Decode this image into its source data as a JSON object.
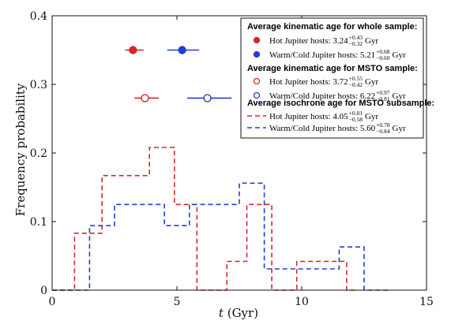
{
  "colors": {
    "hot": "#d62728",
    "warm": "#1f3fd6",
    "axis": "#111111",
    "background": "#ffffff"
  },
  "chart_data": {
    "type": "histogram",
    "xlabel": "t (Gyr)",
    "ylabel": "Frequency probability",
    "xlim": [
      0,
      15
    ],
    "ylim": [
      0,
      0.4
    ],
    "xticks": [
      0,
      5,
      10,
      15
    ],
    "yticks": [
      0,
      0.1,
      0.2,
      0.3,
      0.4
    ],
    "xtick_labels": [
      "0",
      "5",
      "10",
      "15"
    ],
    "ytick_labels": [
      "0",
      "0.1",
      "0.2",
      "0.3",
      "0.4"
    ],
    "grid": false,
    "legend_position": "top-right",
    "legend": {
      "whole_title": "Average kinematic age for whole sample:",
      "mstokin_title": "Average kinematic age for MSTO sample:",
      "iso_title": "Average isochrone age for MSTO subsample:",
      "entries": [
        {
          "group": "whole",
          "marker": "filled-circle",
          "color": "hot",
          "label": "Hot Jupiter hosts:",
          "value": "3.24",
          "sup": "+0.43",
          "sub": "−0.32",
          "unit": "Gyr"
        },
        {
          "group": "whole",
          "marker": "filled-circle",
          "color": "warm",
          "label": "Warm/Cold Jupiter hosts:",
          "value": "5.21",
          "sup": "+0.68",
          "sub": "−0.60",
          "unit": "Gyr"
        },
        {
          "group": "mstokin",
          "marker": "open-circle",
          "color": "hot",
          "label": "Hot Jupiter hosts:",
          "value": "3.72",
          "sup": "+0.55",
          "sub": "−0.42",
          "unit": "Gyr"
        },
        {
          "group": "mstokin",
          "marker": "open-circle",
          "color": "warm",
          "label": "Warm/Cold Jupiter hosts:",
          "value": "6.22",
          "sup": "+0.97",
          "sub": "−0.81",
          "unit": "Gyr"
        },
        {
          "group": "iso",
          "marker": "dashed-line",
          "color": "hot",
          "label": "Hot Jupiter hosts:",
          "value": "4.05",
          "sup": "+0.81",
          "sub": "−0.58",
          "unit": "Gyr"
        },
        {
          "group": "iso",
          "marker": "dashed-line",
          "color": "warm",
          "label": "Warm/Cold Jupiter hosts:",
          "value": "5.60",
          "sup": "+0.78",
          "sub": "−0.84",
          "unit": "Gyr"
        }
      ]
    },
    "points": [
      {
        "name": "Hot Jupiter hosts (whole)",
        "color": "hot",
        "filled": true,
        "x": 3.24,
        "y": 0.35,
        "xerr_minus": 0.32,
        "xerr_plus": 0.43
      },
      {
        "name": "Warm/Cold Jupiter hosts (whole)",
        "color": "warm",
        "filled": true,
        "x": 5.21,
        "y": 0.35,
        "xerr_minus": 0.6,
        "xerr_plus": 0.68
      },
      {
        "name": "Hot Jupiter hosts (MSTO)",
        "color": "hot",
        "filled": false,
        "x": 3.72,
        "y": 0.28,
        "xerr_minus": 0.42,
        "xerr_plus": 0.55
      },
      {
        "name": "Warm/Cold Jupiter hosts (MSTO)",
        "color": "warm",
        "filled": false,
        "x": 6.22,
        "y": 0.28,
        "xerr_minus": 0.81,
        "xerr_plus": 0.97
      }
    ],
    "series": [
      {
        "name": "Hot Jupiter hosts (isochrone)",
        "color": "hot",
        "step_x": [
          0,
          0.9,
          0.9,
          2.0,
          2.0,
          3.9,
          3.9,
          4.9,
          4.9,
          5.8,
          5.8,
          7.0,
          7.0,
          7.8,
          7.8,
          8.8,
          8.8,
          9.8,
          9.8,
          11.8,
          11.8,
          12.2
        ],
        "step_y": [
          0,
          0,
          0.083,
          0.083,
          0.167,
          0.167,
          0.208,
          0.208,
          0.125,
          0.125,
          0,
          0,
          0.042,
          0.042,
          0.125,
          0.125,
          0,
          0,
          0.042,
          0.042,
          0,
          0
        ]
      },
      {
        "name": "Warm/Cold Jupiter hosts (isochrone)",
        "color": "warm",
        "step_x": [
          0,
          1.5,
          1.5,
          2.5,
          2.5,
          4.5,
          4.5,
          5.5,
          5.5,
          7.5,
          7.5,
          8.5,
          8.5,
          11.5,
          11.5,
          12.5,
          12.5,
          13.5
        ],
        "step_y": [
          0,
          0,
          0.094,
          0.094,
          0.125,
          0.125,
          0.094,
          0.094,
          0.125,
          0.125,
          0.156,
          0.156,
          0.031,
          0.031,
          0.063,
          0.063,
          0,
          0
        ]
      }
    ]
  }
}
